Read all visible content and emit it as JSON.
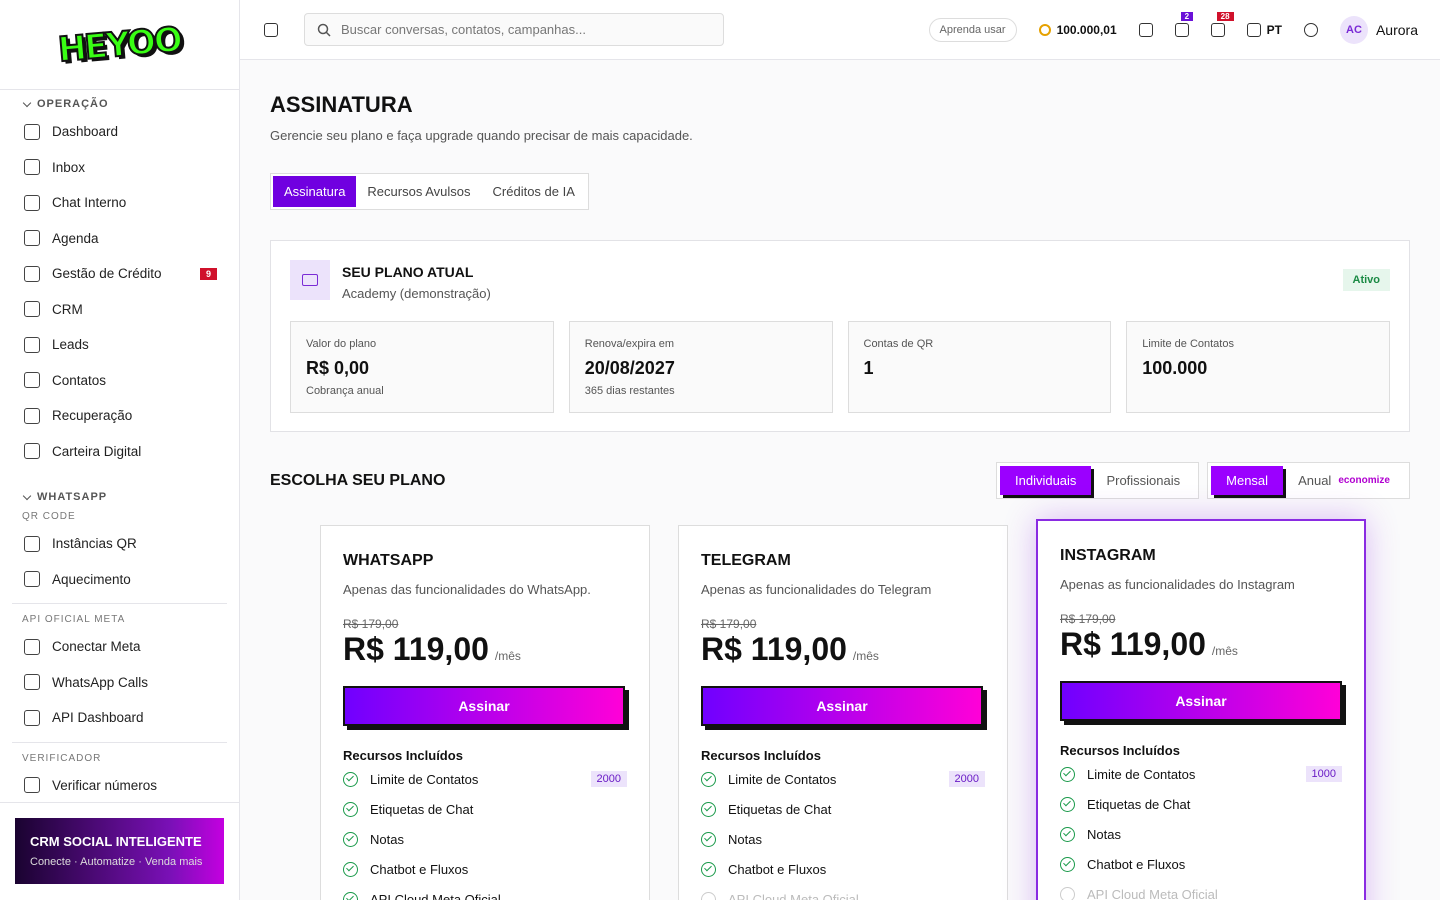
{
  "logo": "HEYOO",
  "sidebar": {
    "sections": [
      {
        "title": "OPERAÇÃO",
        "groups": [
          {
            "items": [
              {
                "label": "Dashboard"
              },
              {
                "label": "Inbox"
              },
              {
                "label": "Chat Interno"
              },
              {
                "label": "Agenda"
              },
              {
                "label": "Gestão de Crédito",
                "badge": 9
              },
              {
                "label": "CRM"
              },
              {
                "label": "Leads"
              },
              {
                "label": "Contatos"
              },
              {
                "label": "Recuperação"
              },
              {
                "label": "Carteira Digital"
              }
            ]
          }
        ]
      },
      {
        "title": "WHATSAPP",
        "groups": [
          {
            "title": "QR CODE",
            "items": [
              {
                "label": "Instâncias QR"
              },
              {
                "label": "Aquecimento"
              }
            ]
          },
          {
            "title": "API OFICIAL META",
            "items": [
              {
                "label": "Conectar Meta"
              },
              {
                "label": "WhatsApp Calls"
              },
              {
                "label": "API Dashboard"
              }
            ]
          },
          {
            "title": "VERIFICADOR",
            "items": [
              {
                "label": "Verificar números"
              }
            ]
          }
        ]
      }
    ],
    "promo": {
      "title": "CRM SOCIAL INTELIGENTE",
      "subtitle": "Conecte · Automatize · Venda mais"
    }
  },
  "topbar": {
    "search": "Buscar conversas, contatos, campanhas...",
    "learn": "Aprenda usar",
    "credits": "100.000,01",
    "tasks_badge": 2,
    "notifications_badge": 28,
    "language": "PT",
    "avatar": "AC",
    "user": "Aurora"
  },
  "header": {
    "title": "ASSINATURA",
    "subtitle": "Gerencie seu plano e faça upgrade quando precisar de mais capacidade."
  },
  "tabs": [
    "Assinatura",
    "Recursos Avulsos",
    "Créditos de IA"
  ],
  "current_plan": {
    "title": "SEU PLANO ATUAL",
    "plan": "Academy (demonstração)",
    "status": "Ativo",
    "stats": [
      {
        "label": "Valor do plano",
        "value": "R$ 0,00",
        "note": "Cobrança anual"
      },
      {
        "label": "Renova/expira em",
        "value": "20/08/2027",
        "note": "365 dias restantes"
      },
      {
        "label": "Contas de QR",
        "value": "1"
      },
      {
        "label": "Limite de Contatos",
        "value": "100.000"
      }
    ]
  },
  "choose": {
    "title": "ESCOLHA SEU PLANO",
    "audience": [
      "Individuais",
      "Profissionais"
    ],
    "billing": [
      "Mensal",
      "Anual"
    ],
    "discount": "economize"
  },
  "plans": [
    {
      "name": "WHATSAPP",
      "description": "Apenas das funcionalidades do WhatsApp.",
      "old_price": "R$ 179,00",
      "price": "R$ 119,00",
      "period": "/mês",
      "button": "Assinar",
      "features_title": "Recursos Incluídos",
      "features": [
        {
          "label": "Limite de Contatos",
          "limit": 2000
        },
        {
          "label": "Etiquetas de Chat"
        },
        {
          "label": "Notas"
        },
        {
          "label": "Chatbot e Fluxos"
        },
        {
          "label": "API Cloud Meta Oficial"
        }
      ]
    },
    {
      "name": "TELEGRAM",
      "description": "Apenas as funcionalidades do Telegram",
      "old_price": "R$ 179,00",
      "price": "R$ 119,00",
      "period": "/mês",
      "button": "Assinar",
      "features_title": "Recursos Incluídos",
      "features": [
        {
          "label": "Limite de Contatos",
          "limit": 2000
        },
        {
          "label": "Etiquetas de Chat"
        },
        {
          "label": "Notas"
        },
        {
          "label": "Chatbot e Fluxos"
        },
        {
          "label": "API Cloud Meta Oficial",
          "excluded": true
        }
      ]
    },
    {
      "name": "INSTAGRAM",
      "description": "Apenas as funcionalidades do Instagram",
      "old_price": "R$ 179,00",
      "price": "R$ 119,00",
      "period": "/mês",
      "button": "Assinar",
      "features_title": "Recursos Incluídos",
      "highlighted": true,
      "features": [
        {
          "label": "Limite de Contatos",
          "limit": 1000
        },
        {
          "label": "Etiquetas de Chat"
        },
        {
          "label": "Notas"
        },
        {
          "label": "Chatbot e Fluxos"
        },
        {
          "label": "API Cloud Meta Oficial",
          "excluded": true
        }
      ]
    }
  ]
}
